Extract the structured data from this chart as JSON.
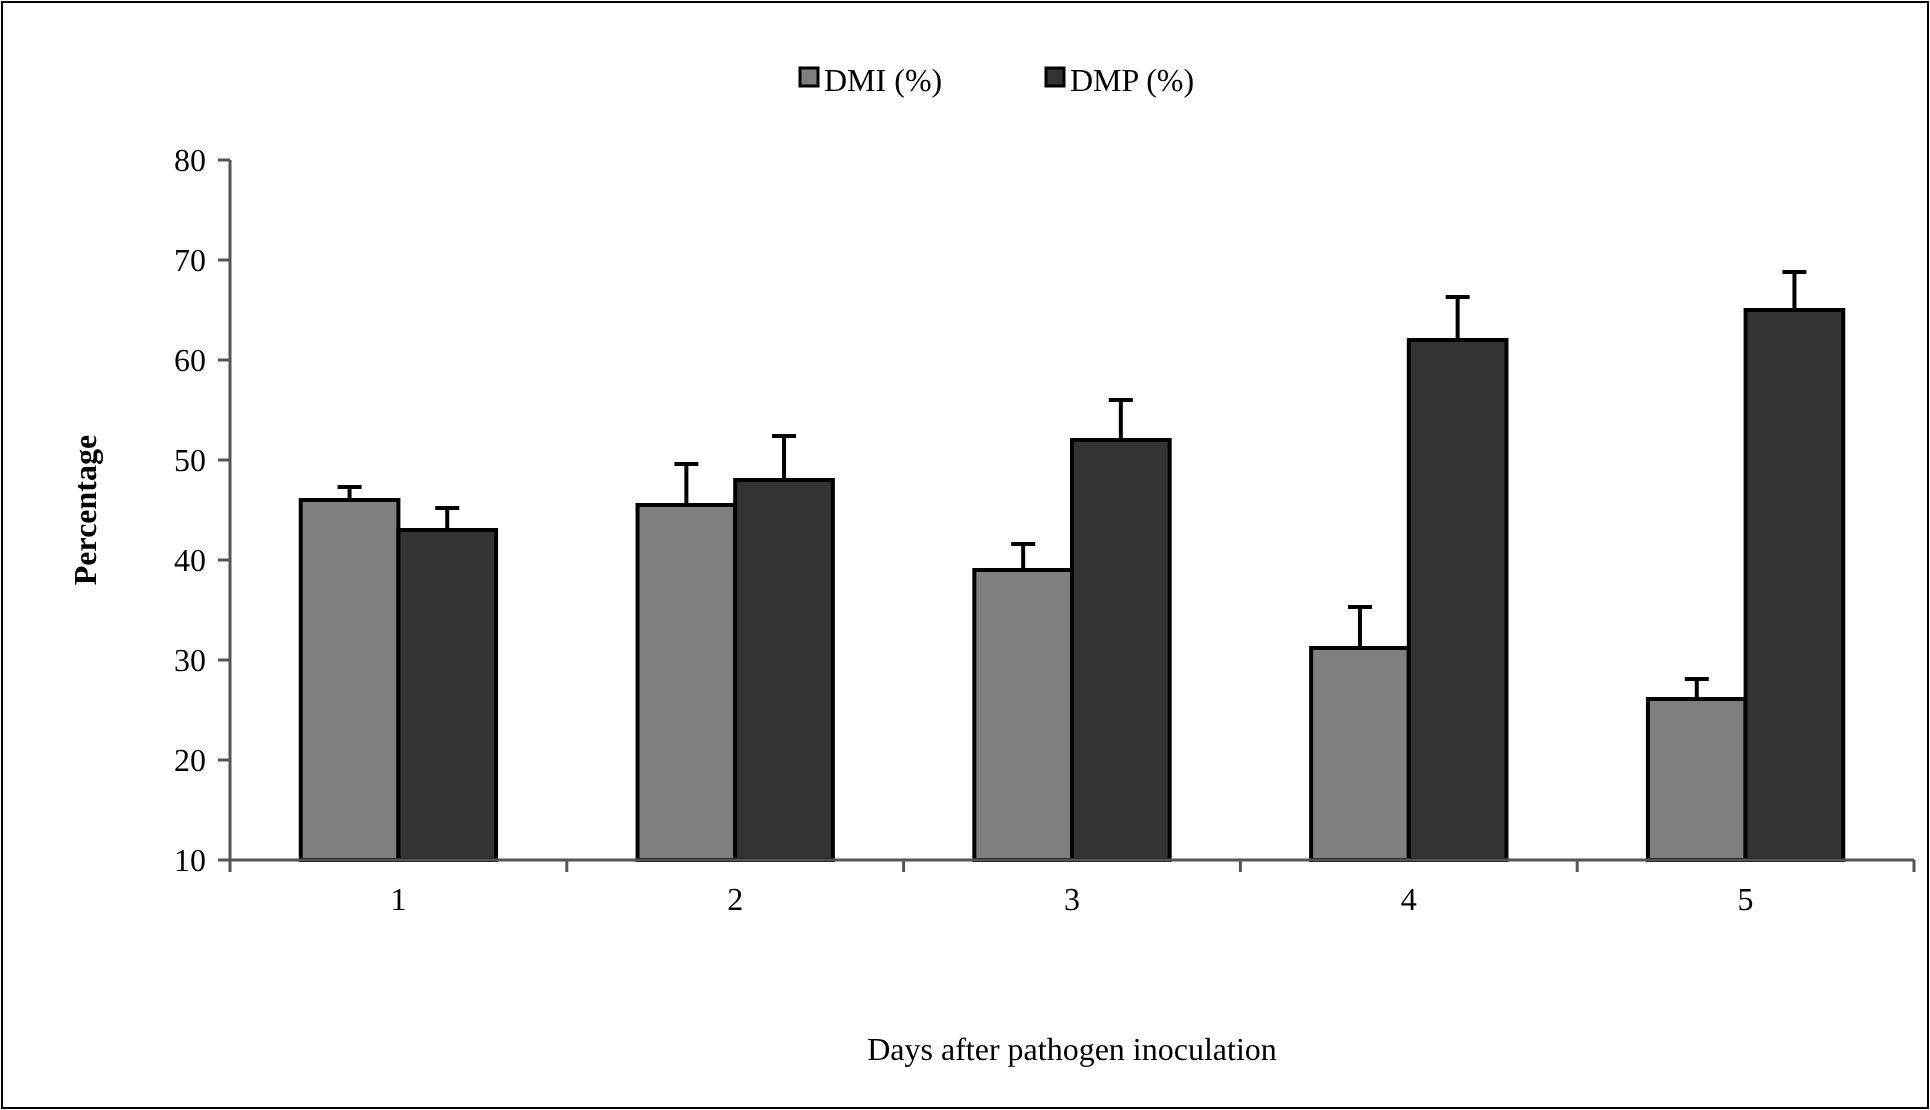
{
  "chart_data": {
    "type": "bar",
    "xlabel": "Days after pathogen inoculation",
    "ylabel": "Percentage",
    "categories": [
      "1",
      "2",
      "3",
      "4",
      "5"
    ],
    "series": [
      {
        "name": "DMI (%)",
        "color": "#7f7f7f",
        "values": [
          46,
          45.5,
          39,
          31.2,
          26.1
        ],
        "errors": [
          1.3,
          4.1,
          2.6,
          4.1,
          2.0
        ]
      },
      {
        "name": "DMP (%)",
        "color": "#333333",
        "values": [
          43,
          48,
          52,
          62,
          65
        ],
        "errors": [
          2.2,
          4.4,
          4,
          4.3,
          3.8
        ]
      }
    ],
    "ylim": [
      10,
      80
    ],
    "yticks": [
      10,
      20,
      30,
      40,
      50,
      60,
      70,
      80
    ],
    "grid": false,
    "legend": "top"
  }
}
